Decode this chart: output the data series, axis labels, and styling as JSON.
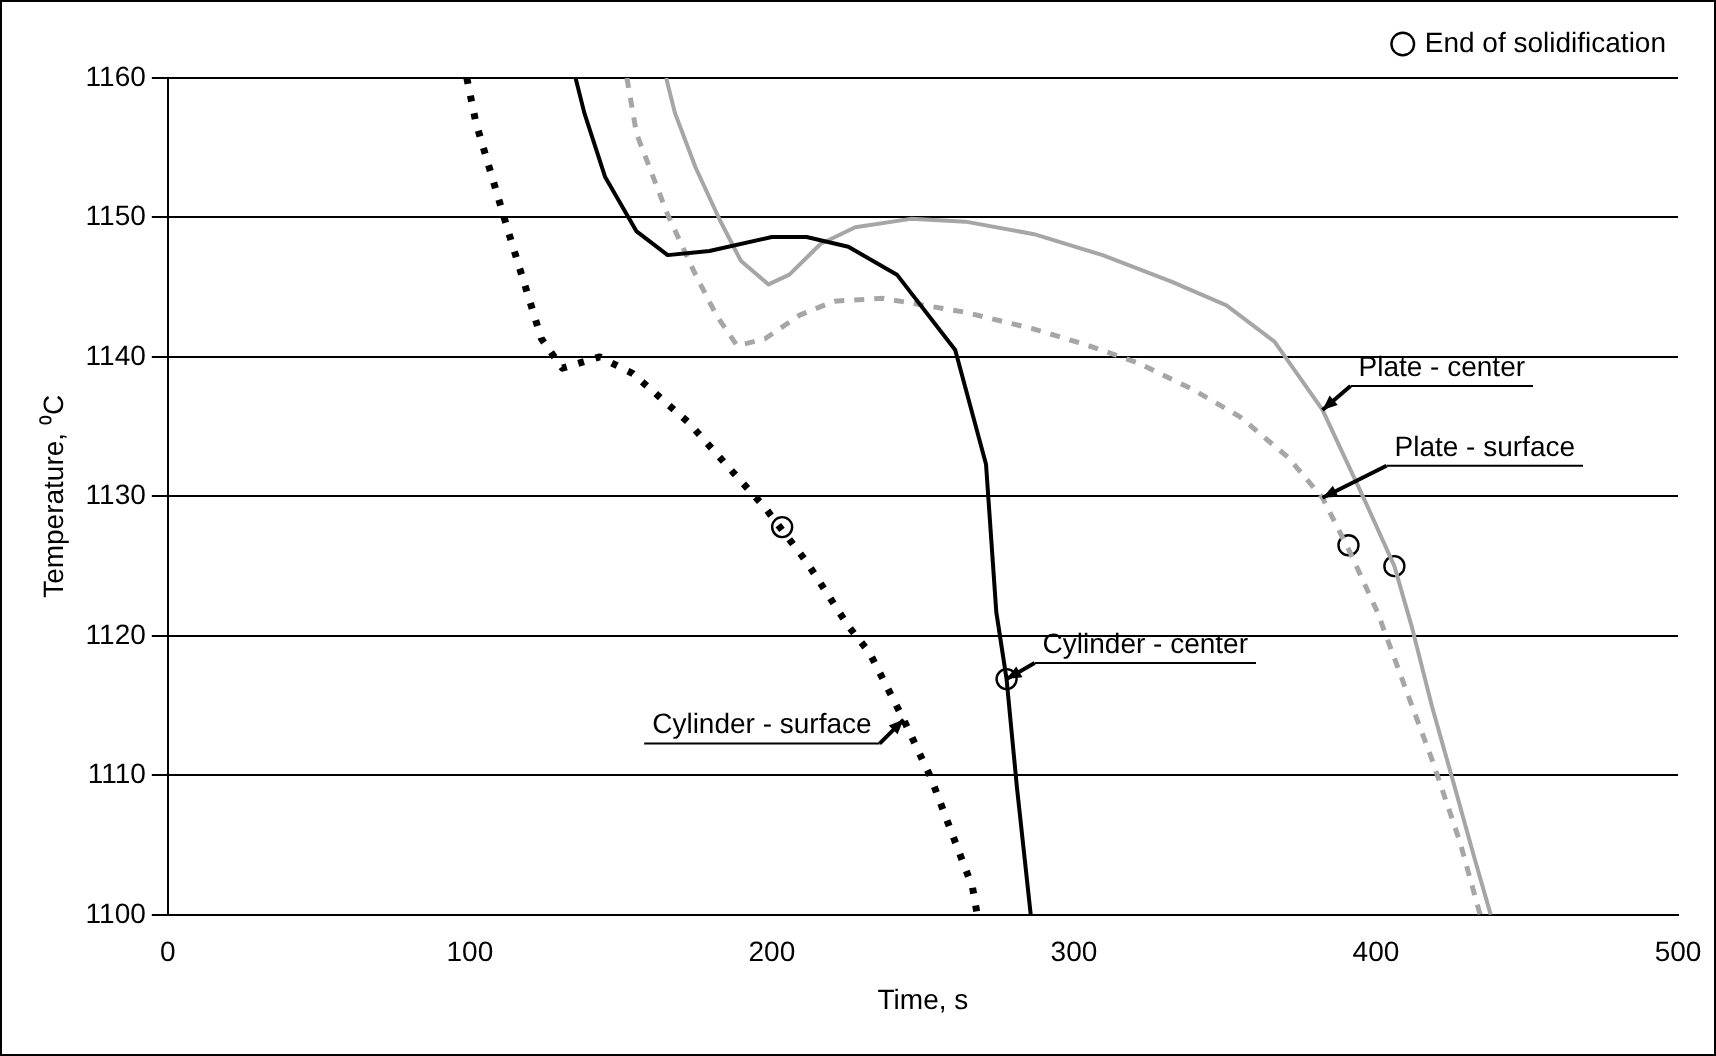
{
  "chart_data": {
    "type": "line",
    "xlabel": "Time, s",
    "ylabel": "Temperature, ⁰C",
    "xlim": [
      0,
      500
    ],
    "xticks": [
      0,
      100,
      200,
      300,
      400,
      500
    ],
    "ylim": [
      1100,
      1160
    ],
    "yticks": [
      1100,
      1110,
      1120,
      1130,
      1140,
      1150,
      1160
    ],
    "grid": "y",
    "legend": "top right",
    "series": [
      {
        "name": "Cylinder - surface",
        "color": "#000000",
        "line_style": "dotted",
        "marker": "none",
        "x": [
          99,
          102,
          113,
          123.7,
          130.6,
          143,
          154,
          172.4,
          188.5,
          197.7,
          211.5,
          225.3,
          232.3,
          243.6,
          252.7,
          259.5,
          266.4,
          268
        ],
        "values": [
          1160,
          1156.8,
          1148.8,
          1141.3,
          1139.2,
          1140,
          1138.8,
          1135.3,
          1131.4,
          1129.2,
          1125.3,
          1120.7,
          1118.8,
          1114,
          1109.8,
          1105.9,
          1102,
          1100
        ]
      },
      {
        "name": "Cylinder - center",
        "color": "#000000",
        "line_style": "solid",
        "marker": "none",
        "x": [
          135,
          137.9,
          144.8,
          155.2,
          165.5,
          179.3,
          200,
          211.5,
          225.3,
          241.4,
          260.7,
          270.9,
          274.3,
          277.7,
          281.1,
          285.7
        ],
        "values": [
          1160,
          1157.5,
          1152.9,
          1149,
          1147.3,
          1147.6,
          1148.6,
          1148.6,
          1147.9,
          1145.9,
          1140.5,
          1132.3,
          1121.7,
          1116.9,
          1109.2,
          1100
        ]
      },
      {
        "name": "Plate - surface",
        "color": "#a6a6a6",
        "line_style": "dashed",
        "marker": "none",
        "x": [
          152,
          155.2,
          165.5,
          174.7,
          181.6,
          188.5,
          197.7,
          209.2,
          220.7,
          236.8,
          264.1,
          286.8,
          305,
          320.9,
          339.1,
          355,
          370.9,
          382.3,
          391.4,
          400.5,
          409.5,
          418.6,
          427.7,
          434.5
        ],
        "values": [
          1160,
          1156,
          1150.2,
          1145.9,
          1143,
          1140.8,
          1141.3,
          1143,
          1144,
          1144.2,
          1143.2,
          1142,
          1140.8,
          1139.6,
          1137.7,
          1135.7,
          1132.8,
          1129.9,
          1126,
          1121.7,
          1116.4,
          1111.1,
          1105.3,
          1100
        ]
      },
      {
        "name": "Plate - center",
        "color": "#a6a6a6",
        "line_style": "solid",
        "marker": "none",
        "x": [
          165,
          167.9,
          174.7,
          182.8,
          189.7,
          198.9,
          205.8,
          216.1,
          227.6,
          246,
          264.1,
          286.8,
          309.5,
          332.3,
          350.5,
          366.4,
          382.3,
          395.9,
          406.1,
          411.8,
          418.6,
          425.5,
          432.3,
          438
        ],
        "values": [
          1160,
          1157.5,
          1153.6,
          1149.8,
          1146.9,
          1145.2,
          1145.9,
          1148.1,
          1149.3,
          1149.9,
          1149.7,
          1148.8,
          1147.3,
          1145.4,
          1143.7,
          1141.1,
          1136.2,
          1129.9,
          1125,
          1120.7,
          1114.9,
          1109.6,
          1104.3,
          1100
        ]
      },
      {
        "name": "End of solidification",
        "type": "scatter",
        "color": "#000000",
        "marker": "circle",
        "x": [
          203.4,
          277.7,
          390.9,
          406.1
        ],
        "values": [
          1127.8,
          1116.9,
          1126.5,
          1125
        ]
      }
    ]
  }
}
